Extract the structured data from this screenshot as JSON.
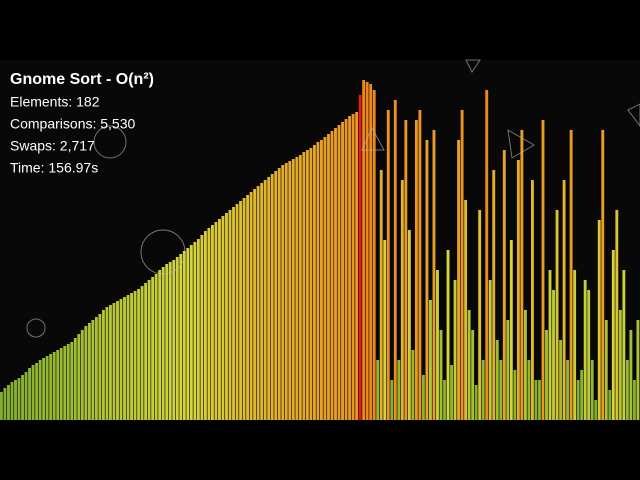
{
  "chart_data": {
    "type": "bar",
    "title": "Gnome Sort - O(n²)",
    "stats": [
      "Elements: 182",
      "Comparisons: 5,530",
      "Swaps: 2,717",
      "Time: 156.97s"
    ],
    "values": [
      28,
      32,
      35,
      38,
      40,
      42,
      45,
      48,
      52,
      55,
      57,
      60,
      62,
      64,
      66,
      68,
      70,
      72,
      74,
      76,
      78,
      82,
      86,
      90,
      94,
      97,
      100,
      103,
      106,
      110,
      113,
      115,
      117,
      119,
      121,
      123,
      125,
      127,
      129,
      131,
      134,
      137,
      140,
      143,
      146,
      150,
      153,
      156,
      158,
      160,
      163,
      166,
      169,
      172,
      175,
      178,
      181,
      185,
      189,
      192,
      195,
      198,
      201,
      204,
      207,
      210,
      213,
      216,
      219,
      222,
      225,
      228,
      231,
      234,
      237,
      240,
      243,
      246,
      249,
      252,
      255,
      257,
      259,
      261,
      263,
      265,
      268,
      270,
      272,
      275,
      278,
      280,
      283,
      286,
      289,
      292,
      295,
      298,
      301,
      304,
      306,
      308,
      325,
      340,
      338,
      336,
      330,
      60,
      250,
      180,
      310,
      40,
      320,
      60,
      240,
      300,
      190,
      70,
      300,
      310,
      45,
      280,
      120,
      290,
      150,
      90,
      40,
      170,
      55,
      140,
      280,
      310,
      220,
      110,
      90,
      35,
      210,
      60,
      330,
      140,
      250,
      80,
      60,
      270,
      100,
      180,
      50,
      260,
      290,
      110,
      60,
      240,
      40,
      40,
      300,
      90,
      150,
      130,
      210,
      80,
      240,
      60,
      290,
      150,
      40,
      50,
      140,
      130,
      60,
      20,
      200,
      290,
      100,
      30,
      170,
      210,
      110,
      150,
      60,
      90,
      40,
      100
    ],
    "ylim": [
      0,
      340
    ],
    "colors": [
      "#6ea62c",
      "#d6d63a",
      "#f0861c"
    ],
    "highlight_index": 102,
    "highlight_color": "#e3201b"
  }
}
